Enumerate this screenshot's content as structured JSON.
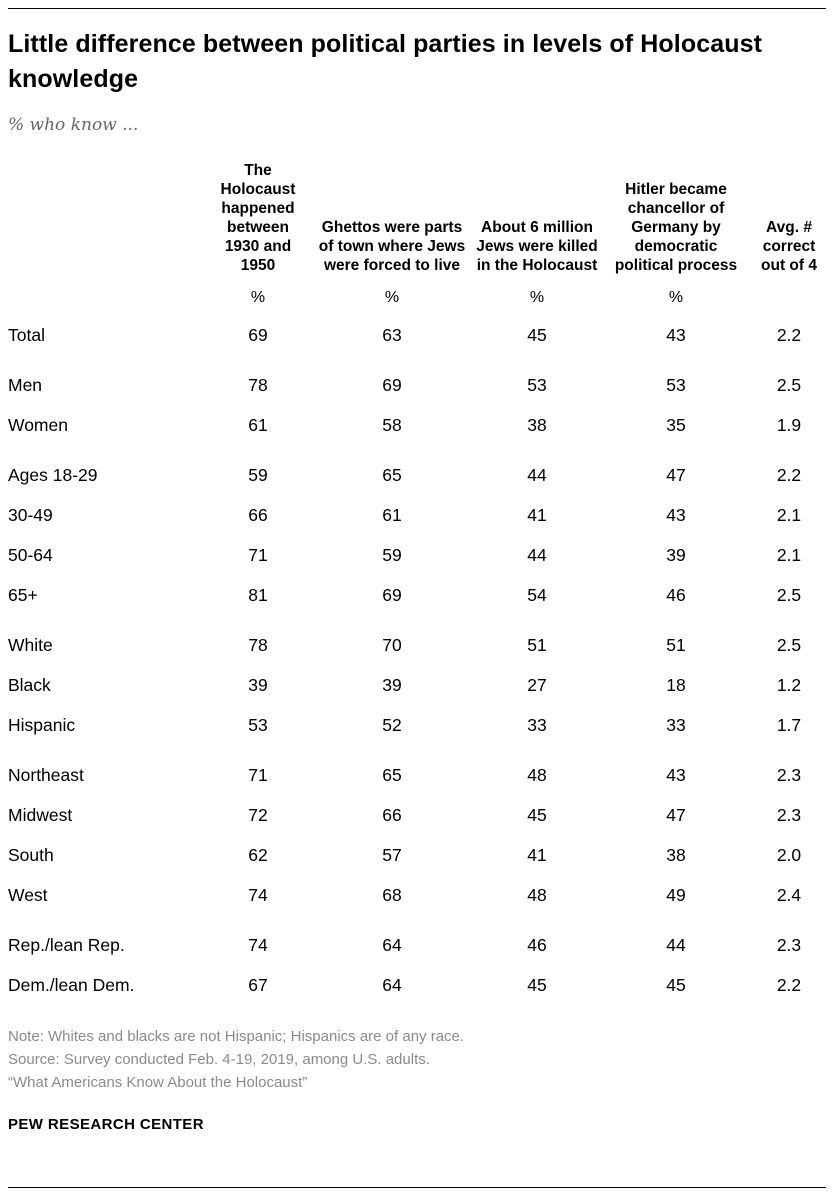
{
  "header": {
    "title": "Little difference between political parties in levels of Holocaust knowledge",
    "subtitle": "% who know ..."
  },
  "chart_data": {
    "type": "table",
    "title": "Little difference between political parties in levels of Holocaust knowledge",
    "subtitle": "% who know ...",
    "unit": "%",
    "columns": [
      "The Holocaust happened between 1930 and 1950",
      "Ghettos were parts of town where Jews were forced to live",
      "About 6 million Jews were killed in the Holocaust",
      "Hitler became chancellor of Germany by democratic political process",
      "Avg. # correct out of 4"
    ],
    "groups": [
      {
        "rows": [
          {
            "label": "Total",
            "values": [
              "69",
              "63",
              "45",
              "43",
              "2.2"
            ]
          }
        ]
      },
      {
        "rows": [
          {
            "label": "Men",
            "values": [
              "78",
              "69",
              "53",
              "53",
              "2.5"
            ]
          },
          {
            "label": "Women",
            "values": [
              "61",
              "58",
              "38",
              "35",
              "1.9"
            ]
          }
        ]
      },
      {
        "rows": [
          {
            "label": "Ages 18-29",
            "values": [
              "59",
              "65",
              "44",
              "47",
              "2.2"
            ]
          },
          {
            "label": "30-49",
            "values": [
              "66",
              "61",
              "41",
              "43",
              "2.1"
            ]
          },
          {
            "label": "50-64",
            "values": [
              "71",
              "59",
              "44",
              "39",
              "2.1"
            ]
          },
          {
            "label": "65+",
            "values": [
              "81",
              "69",
              "54",
              "46",
              "2.5"
            ]
          }
        ]
      },
      {
        "rows": [
          {
            "label": "White",
            "values": [
              "78",
              "70",
              "51",
              "51",
              "2.5"
            ]
          },
          {
            "label": "Black",
            "values": [
              "39",
              "39",
              "27",
              "18",
              "1.2"
            ]
          },
          {
            "label": "Hispanic",
            "values": [
              "53",
              "52",
              "33",
              "33",
              "1.7"
            ]
          }
        ]
      },
      {
        "rows": [
          {
            "label": "Northeast",
            "values": [
              "71",
              "65",
              "48",
              "43",
              "2.3"
            ]
          },
          {
            "label": "Midwest",
            "values": [
              "72",
              "66",
              "45",
              "47",
              "2.3"
            ]
          },
          {
            "label": "South",
            "values": [
              "62",
              "57",
              "41",
              "38",
              "2.0"
            ]
          },
          {
            "label": "West",
            "values": [
              "74",
              "68",
              "48",
              "49",
              "2.4"
            ]
          }
        ]
      },
      {
        "rows": [
          {
            "label": "Rep./lean Rep.",
            "values": [
              "74",
              "64",
              "46",
              "44",
              "2.3"
            ]
          },
          {
            "label": "Dem./lean Dem.",
            "values": [
              "67",
              "64",
              "45",
              "45",
              "2.2"
            ]
          }
        ]
      }
    ]
  },
  "notes": [
    "Note: Whites and blacks are not Hispanic; Hispanics are of any race.",
    "Source: Survey conducted Feb. 4-19, 2019, among U.S. adults.",
    "“What Americans Know About the Holocaust”"
  ],
  "footer": {
    "brand": "PEW RESEARCH CENTER"
  }
}
